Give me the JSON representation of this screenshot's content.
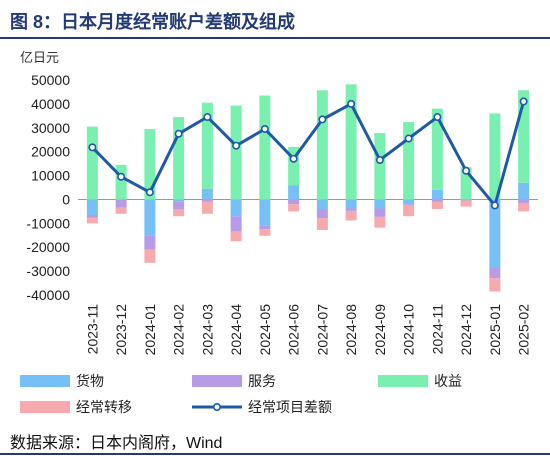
{
  "title": "图 8：日本月度经常账户差额及组成",
  "source": "数据来源：日本内阁府，Wind",
  "colors": {
    "goods": "#77c0f5",
    "services": "#b79be6",
    "income": "#79f0b0",
    "transfers": "#f7a9ad",
    "balance": "#1f5aa6",
    "title": "#243a74"
  },
  "chart_data": {
    "type": "bar",
    "stacked": true,
    "unit_label": "亿日元",
    "ylim": [
      -40000,
      50000
    ],
    "yticks": [
      50000,
      40000,
      30000,
      20000,
      10000,
      0,
      -10000,
      -20000,
      -30000,
      -40000
    ],
    "categories": [
      "2023-11",
      "2023-12",
      "2024-01",
      "2024-02",
      "2024-03",
      "2024-04",
      "2024-05",
      "2024-06",
      "2024-07",
      "2024-08",
      "2024-09",
      "2024-10",
      "2024-11",
      "2024-12",
      "2025-01",
      "2025-02"
    ],
    "series": [
      {
        "name": "货物",
        "key": "goods",
        "type": "bar",
        "values": [
          -6500,
          0,
          -15000,
          -1000,
          4500,
          -7000,
          -11000,
          6000,
          -4000,
          -3800,
          -3800,
          -2000,
          4000,
          0,
          -28500,
          7000
        ]
      },
      {
        "name": "服务",
        "key": "services",
        "type": "bar",
        "values": [
          -1200,
          -3500,
          -6000,
          -3000,
          -1000,
          -6500,
          -1500,
          -2000,
          -3800,
          -1000,
          -3500,
          -500,
          -1000,
          -500,
          -4500,
          -1500
        ]
      },
      {
        "name": "收益",
        "key": "income",
        "type": "bar",
        "values": [
          30500,
          14500,
          29500,
          34500,
          36000,
          39300,
          43500,
          16000,
          45700,
          48200,
          27800,
          32400,
          34000,
          13500,
          36000,
          38700
        ]
      },
      {
        "name": "经常转移",
        "key": "transfers",
        "type": "bar",
        "values": [
          -2300,
          -2500,
          -5500,
          -3000,
          -5000,
          -4000,
          -2700,
          -3000,
          -5000,
          -4000,
          -4500,
          -4500,
          -3000,
          -2500,
          -5500,
          -3500
        ]
      },
      {
        "name": "经常项目差额",
        "key": "balance",
        "type": "line",
        "values": [
          21800,
          9500,
          3000,
          27500,
          34500,
          22500,
          29500,
          17000,
          33500,
          40000,
          16500,
          25500,
          34500,
          12000,
          -2500,
          41000
        ]
      }
    ],
    "legend_order": [
      "goods",
      "services",
      "income",
      "transfers",
      "balance"
    ],
    "legend_position": "bottom",
    "grid": false
  }
}
